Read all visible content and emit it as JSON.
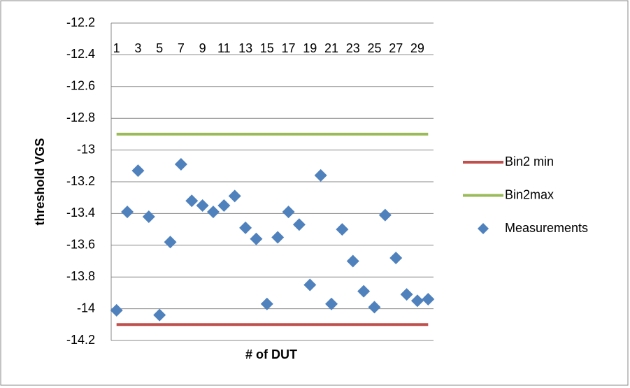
{
  "chart_data": {
    "type": "line_scatter",
    "x_label": "# of DUT",
    "y_label": "threshold VGS",
    "categories": [
      1,
      null,
      3,
      null,
      5,
      null,
      7,
      null,
      9,
      null,
      11,
      null,
      13,
      null,
      15,
      null,
      17,
      null,
      19,
      null,
      21,
      null,
      23,
      null,
      25,
      null,
      27,
      null,
      29,
      null
    ],
    "ylim": [
      -14.2,
      -12.2
    ],
    "yticks": [
      -12.2,
      -12.4,
      -12.6,
      -12.8,
      -13,
      -13.2,
      -13.4,
      -13.6,
      -13.8,
      -14,
      -14.2
    ],
    "grid": true,
    "legend_position": "right",
    "series": [
      {
        "name": "Bin2 min",
        "mark": "line",
        "color": "#c0504d",
        "values": [
          -14.1,
          -14.1,
          -14.1,
          -14.1,
          -14.1,
          -14.1,
          -14.1,
          -14.1,
          -14.1,
          -14.1,
          -14.1,
          -14.1,
          -14.1,
          -14.1,
          -14.1,
          -14.1,
          -14.1,
          -14.1,
          -14.1,
          -14.1,
          -14.1,
          -14.1,
          -14.1,
          -14.1,
          -14.1,
          -14.1,
          -14.1,
          -14.1,
          -14.1,
          -14.1
        ]
      },
      {
        "name": "Bin2max",
        "mark": "line",
        "color": "#9bbb59",
        "values": [
          -12.9,
          -12.9,
          -12.9,
          -12.9,
          -12.9,
          -12.9,
          -12.9,
          -12.9,
          -12.9,
          -12.9,
          -12.9,
          -12.9,
          -12.9,
          -12.9,
          -12.9,
          -12.9,
          -12.9,
          -12.9,
          -12.9,
          -12.9,
          -12.9,
          -12.9,
          -12.9,
          -12.9,
          -12.9,
          -12.9,
          -12.9,
          -12.9,
          -12.9,
          -12.9
        ]
      },
      {
        "name": "Measurements",
        "mark": "diamond",
        "color": "#4f81bd",
        "values": [
          -14.01,
          -13.39,
          -13.13,
          -13.42,
          -14.04,
          -13.58,
          -13.09,
          -13.32,
          -13.35,
          -13.39,
          -13.35,
          -13.29,
          -13.49,
          -13.56,
          -13.97,
          -13.55,
          -13.39,
          -13.47,
          -13.85,
          -13.16,
          -13.97,
          -13.5,
          -13.7,
          -13.89,
          -13.99,
          -13.41,
          -13.68,
          -13.91,
          -13.95,
          -13.94
        ]
      }
    ]
  }
}
